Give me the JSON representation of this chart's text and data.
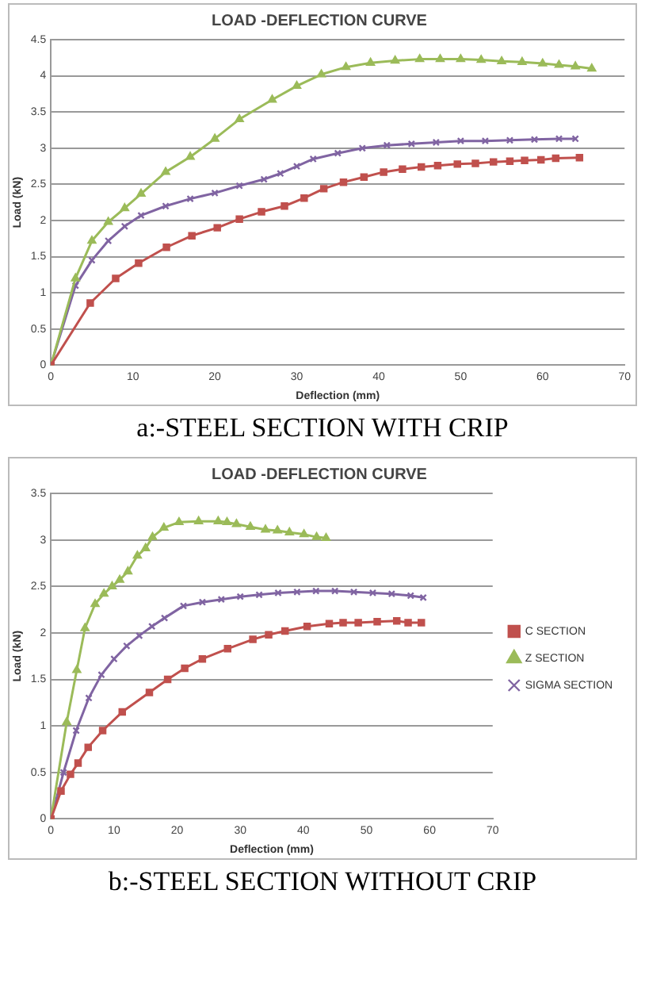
{
  "chart_data": [
    {
      "type": "line",
      "title": "LOAD -DEFLECTION CURVE",
      "xlabel": "Deflection (mm)",
      "ylabel": "Load (kN)",
      "annotations": [
        "a:-STEEL SECTION WITH CRIP"
      ],
      "xlim": [
        0,
        70
      ],
      "xticks": [
        0,
        10,
        20,
        30,
        40,
        50,
        60,
        70
      ],
      "ylim": [
        0,
        4.5
      ],
      "yticks": [
        0,
        0.5,
        1,
        1.5,
        2,
        2.5,
        3,
        3.5,
        4,
        4.5
      ],
      "grid": "y",
      "legend": false,
      "series": [
        {
          "color": "#c0504d",
          "marker": "square",
          "x": [
            0,
            4.8,
            7.9,
            10.7,
            14.1,
            17.2,
            20.3,
            23,
            25.7,
            28.5,
            30.9,
            33.3,
            35.7,
            38.2,
            40.6,
            42.9,
            45.2,
            47.2,
            49.6,
            51.8,
            54,
            56,
            57.8,
            59.8,
            61.6,
            64.5
          ],
          "values": [
            0,
            0.86,
            1.2,
            1.41,
            1.63,
            1.79,
            1.9,
            2.02,
            2.12,
            2.2,
            2.31,
            2.44,
            2.53,
            2.6,
            2.67,
            2.71,
            2.74,
            2.76,
            2.78,
            2.79,
            2.81,
            2.82,
            2.83,
            2.84,
            2.86,
            2.87
          ]
        },
        {
          "color": "#9bbb59",
          "marker": "triangle",
          "x": [
            0,
            3,
            5,
            7,
            9,
            11,
            14,
            17,
            20,
            23,
            27,
            30,
            33,
            36,
            39,
            42,
            45,
            47.5,
            50,
            52.5,
            55,
            57.5,
            60,
            62,
            64,
            66
          ],
          "values": [
            0,
            1.2,
            1.72,
            1.98,
            2.17,
            2.37,
            2.67,
            2.88,
            3.13,
            3.4,
            3.67,
            3.86,
            4.02,
            4.12,
            4.18,
            4.21,
            4.23,
            4.23,
            4.23,
            4.22,
            4.2,
            4.19,
            4.17,
            4.15,
            4.13,
            4.1
          ]
        },
        {
          "color": "#8064a2",
          "marker": "cross",
          "x": [
            0,
            3,
            5,
            7,
            9,
            11,
            14,
            17,
            20,
            23,
            26,
            28,
            30,
            32,
            35,
            38,
            41,
            44,
            47,
            50,
            53,
            56,
            59,
            62,
            64
          ],
          "values": [
            0,
            1.1,
            1.45,
            1.72,
            1.92,
            2.07,
            2.2,
            2.3,
            2.38,
            2.48,
            2.57,
            2.65,
            2.75,
            2.85,
            2.93,
            3.0,
            3.04,
            3.06,
            3.08,
            3.1,
            3.1,
            3.11,
            3.12,
            3.13,
            3.13
          ]
        }
      ]
    },
    {
      "type": "line",
      "title": "LOAD -DEFLECTION CURVE",
      "xlabel": "Deflection (mm)",
      "ylabel": "Load (kN)",
      "annotations": [
        "b:-STEEL SECTION WITHOUT CRIP"
      ],
      "xlim": [
        0,
        70
      ],
      "xticks": [
        0,
        10,
        20,
        30,
        40,
        50,
        60,
        70
      ],
      "ylim": [
        0,
        3.5
      ],
      "yticks": [
        0,
        0.5,
        1,
        1.5,
        2,
        2.5,
        3,
        3.5
      ],
      "grid": "y",
      "legend": "right",
      "series": [
        {
          "name": "C SECTION",
          "color": "#c0504d",
          "marker": "square",
          "x": [
            0,
            1.6,
            3.1,
            4.3,
            5.9,
            8.2,
            11.3,
            15.6,
            18.5,
            21.2,
            24,
            28,
            32,
            34.5,
            37.1,
            40.6,
            44.1,
            46.3,
            48.7,
            51.7,
            54.8,
            56.6,
            58.7
          ],
          "values": [
            0,
            0.3,
            0.48,
            0.6,
            0.77,
            0.95,
            1.15,
            1.36,
            1.5,
            1.62,
            1.72,
            1.83,
            1.93,
            1.98,
            2.02,
            2.07,
            2.1,
            2.11,
            2.11,
            2.12,
            2.13,
            2.11,
            2.11
          ]
        },
        {
          "name": "Z SECTION",
          "color": "#9bbb59",
          "marker": "triangle",
          "x": [
            0,
            2.5,
            4.1,
            5.4,
            7,
            8.4,
            9.7,
            10.9,
            12.2,
            13.7,
            15,
            16.1,
            17.9,
            20.3,
            23.4,
            26.5,
            27.9,
            29.4,
            31.6,
            34,
            35.9,
            37.8,
            40.1,
            42.1,
            43.6
          ],
          "values": [
            0,
            1.04,
            1.6,
            2.05,
            2.31,
            2.42,
            2.5,
            2.57,
            2.66,
            2.83,
            2.91,
            3.03,
            3.13,
            3.19,
            3.2,
            3.2,
            3.19,
            3.17,
            3.14,
            3.11,
            3.1,
            3.08,
            3.06,
            3.03,
            3.02
          ]
        },
        {
          "name": "SIGMA SECTION",
          "color": "#8064a2",
          "marker": "cross",
          "x": [
            0,
            2,
            4,
            6,
            8,
            10,
            12,
            14,
            16,
            18,
            21,
            24,
            27,
            30,
            33,
            36,
            39,
            42,
            45,
            48,
            51,
            54,
            57,
            59
          ],
          "values": [
            0,
            0.5,
            0.95,
            1.3,
            1.55,
            1.72,
            1.86,
            1.97,
            2.07,
            2.16,
            2.29,
            2.33,
            2.36,
            2.39,
            2.41,
            2.43,
            2.44,
            2.45,
            2.45,
            2.44,
            2.43,
            2.42,
            2.4,
            2.38
          ]
        }
      ]
    }
  ]
}
